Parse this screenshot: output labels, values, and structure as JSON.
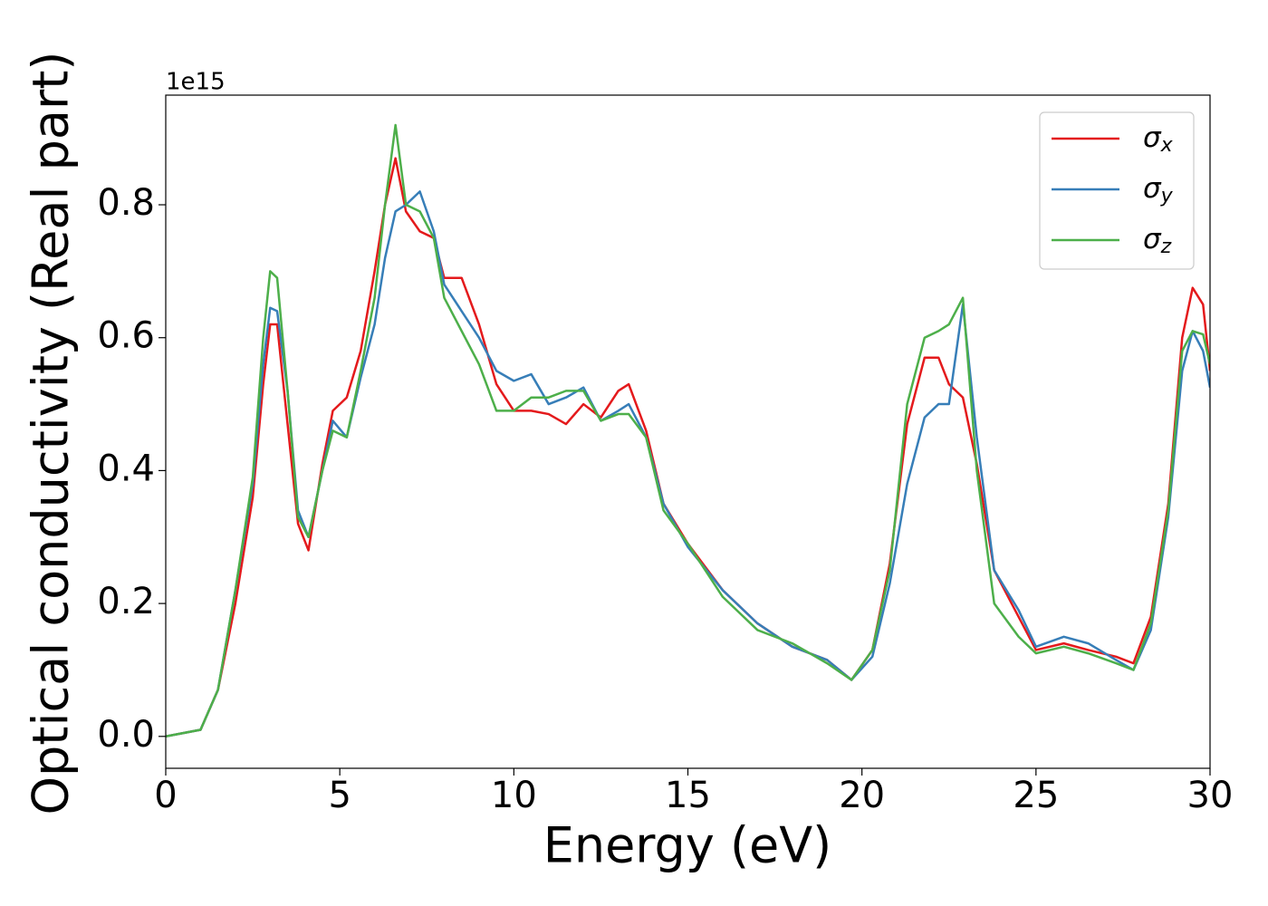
{
  "chart_data": {
    "type": "line",
    "x_label": "Energy (eV)",
    "y_label": "Optical conductivity (Real part)",
    "offset_label": "1e15",
    "x": [
      0,
      1,
      1.5,
      2,
      2.5,
      2.8,
      3.0,
      3.2,
      3.5,
      3.8,
      4.1,
      4.5,
      4.8,
      5.2,
      5.6,
      6.0,
      6.3,
      6.6,
      6.9,
      7.3,
      7.7,
      8.0,
      8.5,
      9.0,
      9.5,
      10,
      10.5,
      11,
      11.5,
      12,
      12.5,
      13,
      13.3,
      13.8,
      14.3,
      15,
      16,
      17,
      18,
      19,
      19.7,
      20.3,
      20.8,
      21.3,
      21.8,
      22.2,
      22.5,
      22.9,
      23.3,
      23.8,
      24.5,
      25,
      25.8,
      26.5,
      27.3,
      27.8,
      28.3,
      28.8,
      29.2,
      29.5,
      29.8,
      30
    ],
    "series": [
      {
        "name": "σx",
        "color": "#e41a1c",
        "values": [
          0,
          0.01,
          0.07,
          0.2,
          0.36,
          0.53,
          0.62,
          0.62,
          0.47,
          0.32,
          0.28,
          0.41,
          0.49,
          0.51,
          0.58,
          0.7,
          0.8,
          0.87,
          0.79,
          0.76,
          0.75,
          0.69,
          0.69,
          0.62,
          0.53,
          0.49,
          0.49,
          0.485,
          0.47,
          0.5,
          0.48,
          0.52,
          0.53,
          0.46,
          0.35,
          0.29,
          0.22,
          0.17,
          0.135,
          0.115,
          0.085,
          0.13,
          0.26,
          0.47,
          0.57,
          0.57,
          0.53,
          0.51,
          0.41,
          0.25,
          0.18,
          0.13,
          0.14,
          0.13,
          0.12,
          0.11,
          0.18,
          0.35,
          0.6,
          0.675,
          0.65,
          0.55
        ]
      },
      {
        "name": "σy",
        "color": "#377eb8",
        "values": [
          0,
          0.01,
          0.07,
          0.22,
          0.38,
          0.56,
          0.645,
          0.64,
          0.52,
          0.34,
          0.3,
          0.4,
          0.475,
          0.45,
          0.54,
          0.62,
          0.72,
          0.79,
          0.8,
          0.82,
          0.76,
          0.68,
          0.64,
          0.6,
          0.55,
          0.535,
          0.545,
          0.5,
          0.51,
          0.525,
          0.475,
          0.49,
          0.5,
          0.45,
          0.35,
          0.285,
          0.22,
          0.17,
          0.135,
          0.115,
          0.085,
          0.12,
          0.23,
          0.38,
          0.48,
          0.5,
          0.5,
          0.65,
          0.45,
          0.25,
          0.19,
          0.135,
          0.15,
          0.14,
          0.115,
          0.1,
          0.16,
          0.33,
          0.55,
          0.61,
          0.58,
          0.525
        ]
      },
      {
        "name": "σz",
        "color": "#4daf4a",
        "values": [
          0,
          0.01,
          0.07,
          0.22,
          0.39,
          0.6,
          0.7,
          0.69,
          0.52,
          0.33,
          0.3,
          0.4,
          0.46,
          0.45,
          0.55,
          0.66,
          0.8,
          0.92,
          0.8,
          0.79,
          0.75,
          0.66,
          0.61,
          0.56,
          0.49,
          0.49,
          0.51,
          0.51,
          0.52,
          0.52,
          0.475,
          0.485,
          0.485,
          0.45,
          0.34,
          0.29,
          0.21,
          0.16,
          0.14,
          0.11,
          0.085,
          0.13,
          0.25,
          0.5,
          0.6,
          0.61,
          0.62,
          0.66,
          0.4,
          0.2,
          0.15,
          0.125,
          0.135,
          0.125,
          0.11,
          0.1,
          0.17,
          0.34,
          0.58,
          0.61,
          0.605,
          0.56
        ]
      }
    ],
    "xlim": [
      0,
      30
    ],
    "xticks": [
      0,
      5,
      10,
      15,
      20,
      25,
      30
    ],
    "ylim": [
      -0.048,
      0.965
    ],
    "yticks": [
      {
        "value": 0,
        "label": "0.0"
      },
      0.2,
      0.4,
      0.6,
      0.8
    ],
    "grid": false,
    "legend": "upper right"
  }
}
